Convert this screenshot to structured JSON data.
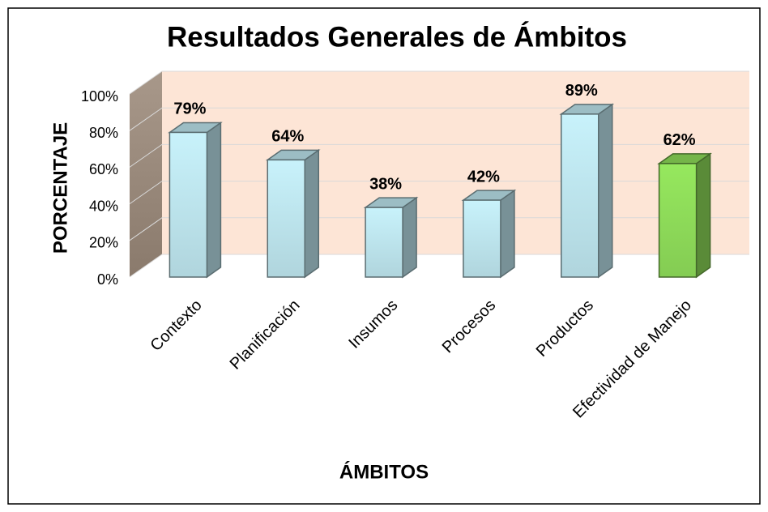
{
  "chart_data": {
    "type": "bar3d",
    "title": "Resultados Generales de Ámbitos",
    "x_label": "ÁMBITOS",
    "y_label": "PORCENTAJE",
    "categories": [
      "Contexto",
      "Planificación",
      "Insumos",
      "Procesos",
      "Productos",
      "Efectividad de Manejo"
    ],
    "values": [
      79,
      64,
      38,
      42,
      89,
      62
    ],
    "value_labels": [
      "79%",
      "64%",
      "38%",
      "42%",
      "89%",
      "62%"
    ],
    "colors": [
      "#c8f2fb",
      "#c8f2fb",
      "#c8f2fb",
      "#c8f2fb",
      "#c8f2fb",
      "#96e85e"
    ],
    "ylim": [
      0,
      100
    ],
    "yticks": [
      {
        "value": 0,
        "label": "0%"
      },
      {
        "value": 20,
        "label": "20%"
      },
      {
        "value": 40,
        "label": "40%"
      },
      {
        "value": 60,
        "label": "60%"
      },
      {
        "value": 80,
        "label": "80%"
      },
      {
        "value": 100,
        "label": "100%"
      }
    ],
    "grid": true
  }
}
